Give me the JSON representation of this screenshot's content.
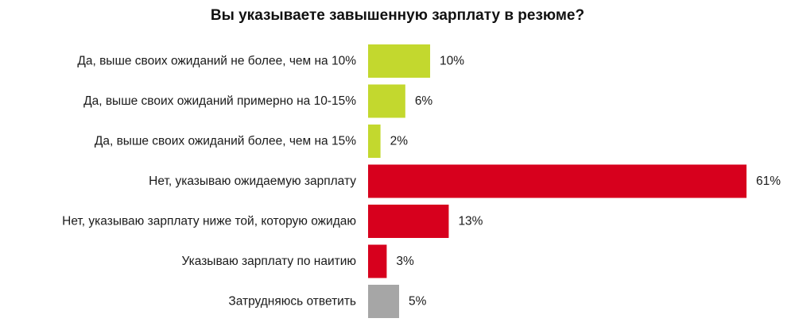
{
  "chart_data": {
    "type": "bar",
    "orientation": "horizontal",
    "title": "Вы указываете завышенную зарплату в резюме?",
    "xlabel": "",
    "ylabel": "",
    "xlim": [
      0,
      61
    ],
    "grid": false,
    "legend": "none",
    "categories": [
      "Да, выше своих ожиданий не более, чем на 10%",
      "Да, выше своих ожиданий примерно на 10-15%",
      "Да, выше своих ожиданий более, чем на 15%",
      "Нет, указываю ожидаемую зарплату",
      "Нет, указываю зарплату ниже той, которую ожидаю",
      "Указываю зарплату по наитию",
      "Затрудняюсь ответить"
    ],
    "values": [
      10,
      6,
      2,
      61,
      13,
      3,
      5
    ],
    "data_labels": [
      "10%",
      "6%",
      "2%",
      "61%",
      "13%",
      "3%",
      "5%"
    ],
    "colors": [
      "#c3d82e",
      "#c3d82e",
      "#c3d82e",
      "#d7001d",
      "#d7001d",
      "#d7001d",
      "#a6a6a6"
    ]
  }
}
